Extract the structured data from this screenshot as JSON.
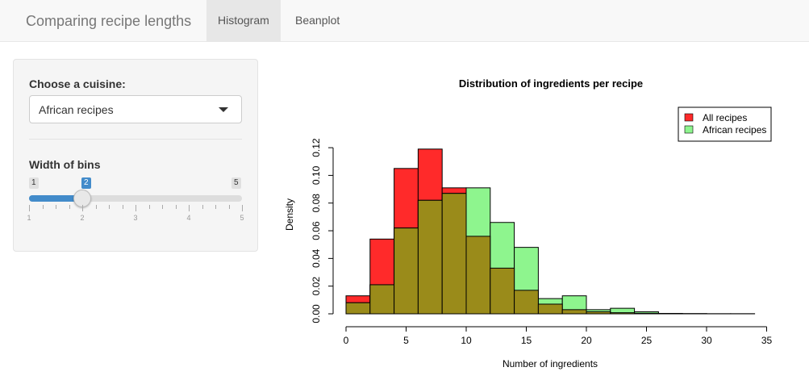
{
  "app": {
    "title": "Comparing recipe lengths"
  },
  "tabs": [
    {
      "label": "Histogram",
      "active": true
    },
    {
      "label": "Beanplot",
      "active": false
    }
  ],
  "sidebar": {
    "cuisine_label": "Choose a cuisine:",
    "cuisine_selected": "African recipes",
    "bins_label": "Width of bins",
    "slider": {
      "min": 1,
      "max": 5,
      "value": 2,
      "min_label": "1",
      "max_label": "5",
      "value_label": "2",
      "grid_labels": [
        "1",
        "2",
        "3",
        "4",
        "5"
      ]
    }
  },
  "colors": {
    "all": "#ff2a2a",
    "african": "#8ef58e",
    "overlap": "#9a8b1a",
    "accent": "#428bca"
  },
  "chart_data": {
    "type": "bar",
    "title": "Distribution of ingredients per recipe",
    "xlabel": "Number of ingredients",
    "ylabel": "Density",
    "xlim": [
      0,
      35
    ],
    "ylim": [
      0,
      0.12
    ],
    "x_ticks": [
      0,
      5,
      10,
      15,
      20,
      25,
      30,
      35
    ],
    "y_ticks": [
      0.0,
      0.02,
      0.04,
      0.06,
      0.08,
      0.1,
      0.12
    ],
    "y_tick_labels": [
      "0.00",
      "0.02",
      "0.04",
      "0.06",
      "0.08",
      "0.10",
      "0.12"
    ],
    "bin_edges": [
      0,
      2,
      4,
      6,
      8,
      10,
      12,
      14,
      16,
      18,
      20,
      22,
      24,
      26,
      28,
      30,
      32,
      34
    ],
    "legend_position": "top-right",
    "series": [
      {
        "name": "All recipes",
        "color": "#ff2a2a",
        "values": [
          0.013,
          0.054,
          0.105,
          0.119,
          0.091,
          0.056,
          0.033,
          0.017,
          0.007,
          0.003,
          0.0015,
          0.0008,
          0.0004,
          0.0003,
          0.0002,
          0.0001,
          0.0001
        ]
      },
      {
        "name": "African recipes",
        "color": "#8ef58e",
        "values": [
          0.008,
          0.021,
          0.062,
          0.082,
          0.087,
          0.091,
          0.066,
          0.048,
          0.011,
          0.013,
          0.003,
          0.004,
          0.0015,
          0.0,
          0.0,
          0.0,
          0.0
        ]
      }
    ]
  }
}
